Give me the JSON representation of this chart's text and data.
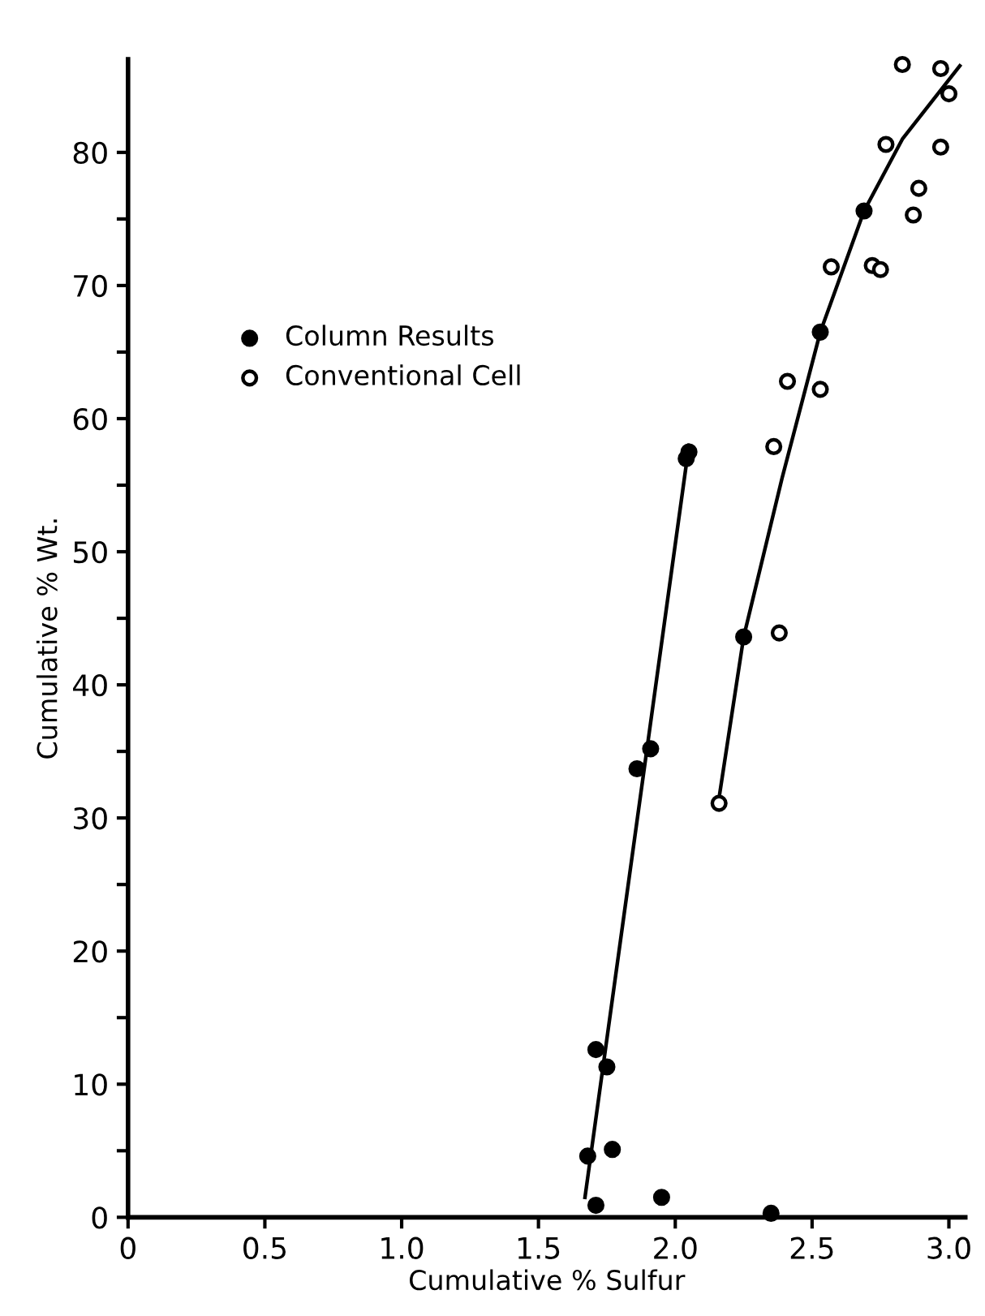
{
  "chart_data": {
    "type": "scatter",
    "xlabel": "Cumulative % Sulfur",
    "ylabel": "Cumulative % Wt.",
    "xlim": [
      0,
      3.06
    ],
    "ylim": [
      0,
      87
    ],
    "xticks": [
      0,
      0.5,
      {
        "value": 1,
        "label": "1.0"
      },
      1.5,
      {
        "value": 2,
        "label": "2.0"
      },
      2.5,
      {
        "value": 3,
        "label": "3.0"
      }
    ],
    "yticks": [
      0,
      {
        "value": 5,
        "label": null
      },
      10,
      {
        "value": 15,
        "label": null
      },
      20,
      {
        "value": 25,
        "label": null
      },
      30,
      {
        "value": 35,
        "label": null
      },
      40,
      {
        "value": 45,
        "label": null
      },
      50,
      {
        "value": 55,
        "label": null
      },
      60,
      {
        "value": 65,
        "label": null
      },
      70,
      {
        "value": 75,
        "label": null
      },
      80
    ],
    "grid": false,
    "legend": "top left",
    "marker": "circle",
    "series": [
      {
        "name": "Column Results",
        "color": "#000000",
        "x": [
          1.71,
          1.95,
          1.68,
          1.77,
          1.71,
          1.75,
          1.86,
          1.91,
          2.04,
          2.05,
          2.35,
          2.25,
          2.53,
          2.69
        ],
        "values": [
          0.9,
          1.5,
          4.6,
          5.1,
          12.6,
          11.3,
          33.7,
          35.2,
          57.0,
          57.5,
          0.3,
          43.6,
          66.5,
          75.6
        ]
      },
      {
        "name": "Conventional Cell",
        "color": "#000000",
        "x": [
          2.16,
          2.38,
          2.36,
          2.41,
          2.53,
          2.57,
          2.72,
          2.75,
          2.87,
          2.89,
          2.77,
          2.97,
          2.83,
          2.97,
          3.0
        ],
        "values": [
          31.1,
          43.9,
          57.9,
          62.8,
          62.2,
          71.4,
          71.5,
          71.2,
          75.3,
          77.3,
          80.6,
          80.4,
          86.6,
          86.3,
          84.4
        ]
      },
      {
        "type": "line",
        "marker": "none",
        "color": "#000000",
        "x": [
          1.67,
          2.05
        ],
        "values": [
          1.5,
          58.0
        ]
      },
      {
        "type": "line",
        "marker": "none",
        "color": "#000000",
        "x": [
          2.16,
          2.25,
          2.39,
          2.53,
          2.69,
          2.83,
          3.04
        ],
        "values": [
          31.5,
          43.6,
          55.5,
          66.5,
          75.6,
          81.0,
          86.5
        ]
      }
    ]
  }
}
